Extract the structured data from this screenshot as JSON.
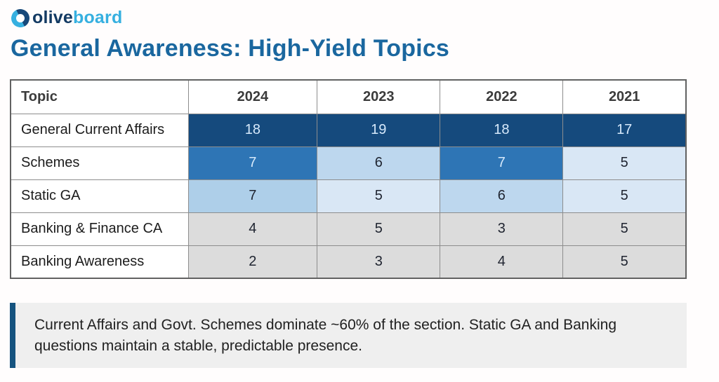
{
  "logo": {
    "olive": "olive",
    "board": "board"
  },
  "page_title": "General Awareness: High-Yield Topics",
  "table": {
    "columns": [
      "Topic",
      "2024",
      "2023",
      "2022",
      "2021"
    ],
    "rows": [
      {
        "topic": "General Current Affairs",
        "values": [
          "18",
          "19",
          "18",
          "17"
        ],
        "cell_styles": [
          "dark",
          "dark",
          "dark",
          "dark"
        ]
      },
      {
        "topic": "Schemes",
        "values": [
          "7",
          "6",
          "7",
          "5"
        ],
        "cell_styles": [
          "med",
          "light6",
          "med",
          "light5"
        ]
      },
      {
        "topic": "Static GA",
        "values": [
          "7",
          "5",
          "6",
          "5"
        ],
        "cell_styles": [
          "light7",
          "light5",
          "light6",
          "light5"
        ]
      },
      {
        "topic": "Banking & Finance CA",
        "values": [
          "4",
          "5",
          "3",
          "5"
        ],
        "cell_styles": [
          "gray",
          "gray",
          "gray",
          "gray"
        ]
      },
      {
        "topic": "Banking Awareness",
        "values": [
          "2",
          "3",
          "4",
          "5"
        ],
        "cell_styles": [
          "gray",
          "gray",
          "gray",
          "gray"
        ]
      }
    ]
  },
  "note": {
    "text": "Current Affairs and Govt. Schemes dominate ~60% of the section. Static GA and Banking questions maintain a stable, predictable presence."
  },
  "colors": {
    "dark": "#154a7d",
    "med": "#2e75b5",
    "light7": "#aecfe9",
    "light6": "#bdd7ee",
    "light5": "#d9e7f5",
    "gray": "#dcdcdc",
    "light_text": "#d6e9fb",
    "dark_text": "#1f2430",
    "heading": "#1a679f",
    "note_bar": "#15537f",
    "logo_olive": "#133a63",
    "logo_board": "#36b0e0"
  },
  "chart_data": {
    "type": "table",
    "title": "General Awareness: High-Yield Topics",
    "categories": [
      "2024",
      "2023",
      "2022",
      "2021"
    ],
    "series": [
      {
        "name": "General Current Affairs",
        "values": [
          18,
          19,
          18,
          17
        ]
      },
      {
        "name": "Schemes",
        "values": [
          7,
          6,
          7,
          5
        ]
      },
      {
        "name": "Static GA",
        "values": [
          7,
          5,
          6,
          5
        ]
      },
      {
        "name": "Banking & Finance CA",
        "values": [
          4,
          5,
          3,
          5
        ]
      },
      {
        "name": "Banking Awareness",
        "values": [
          2,
          3,
          4,
          5
        ]
      }
    ],
    "annotation": "Current Affairs and Govt. Schemes dominate ~60% of the section. Static GA and Banking questions maintain a stable, predictable presence.",
    "legend_position": "none",
    "style": "heatmap-table (darker blue = higher question count; gray = banking rows)"
  }
}
